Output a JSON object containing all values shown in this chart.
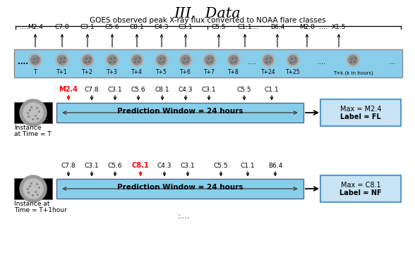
{
  "title": "III.  Data",
  "title_fontsize": 15,
  "background_color": "#ffffff",
  "light_blue": "#87CEEB",
  "goes_text": "GOES observed peak X-ray flux converted to NOAA flare classes",
  "timeline_labels": [
    "T",
    "T+1",
    "T+2",
    "T+3",
    "T+4",
    "T+5",
    "T+6",
    "T+7",
    "T+8",
    "T+24",
    "T+25",
    "T+k (k in hours)"
  ],
  "flare_labels_top": [
    "M2.4",
    "C7.8",
    "C3.1",
    "C5.6",
    "C8.1",
    "C4.3",
    "C3.1",
    "C5.5",
    "C1.1",
    "B6.4",
    "M2.8",
    "X1.5"
  ],
  "row1_flares": [
    "M2.4",
    "C7.8",
    "C3.1",
    "C5.6",
    "C8.1",
    "C4.3",
    "C3.1",
    "C5.5",
    "C1.1"
  ],
  "row1_highlight": "M2.4",
  "row1_pred_text": "Prediction Window = 24 hours",
  "row1_max": "Max = M2.4",
  "row1_label": "Label = FL",
  "row1_instance_line1": "Instance",
  "row1_instance_line2": "at Time = T",
  "row2_flares": [
    "C7.8",
    "C3.1",
    "C5.6",
    "C8.1",
    "C4.3",
    "C3.1",
    "C5.5",
    "C1.1",
    "B6.4"
  ],
  "row2_highlight": "C8.1",
  "row2_pred_text": "Prediction Window = 24 hours",
  "row2_max": "Max = C8.1",
  "row2_label": "Label = NF",
  "row2_instance_line1": "Instance at",
  "row2_instance_line2": "Time = T+1hour"
}
